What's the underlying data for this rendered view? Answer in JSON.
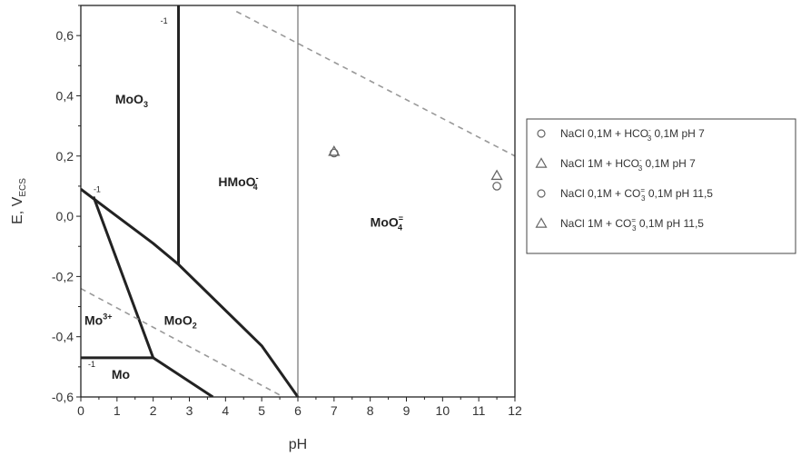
{
  "chart_data": {
    "type": "scatter",
    "title": "",
    "xlabel": "pH",
    "ylabel_main": "E, V",
    "ylabel_sub": "ECS",
    "xlim": [
      0,
      12
    ],
    "ylim": [
      -0.6,
      0.7
    ],
    "x_ticks": [
      0,
      1,
      2,
      3,
      4,
      5,
      6,
      7,
      8,
      9,
      10,
      11,
      12
    ],
    "y_ticks": [
      {
        "value": 0.6,
        "label": "0,6"
      },
      {
        "value": 0.4,
        "label": "0,4"
      },
      {
        "value": 0.2,
        "label": "0,2"
      },
      {
        "value": 0.0,
        "label": "0,0"
      },
      {
        "value": -0.2,
        "label": "-0,2"
      },
      {
        "value": -0.4,
        "label": "-0,4"
      },
      {
        "value": -0.6,
        "label": "-0,6"
      }
    ],
    "grid": false,
    "boundaries": [
      {
        "style": "thick",
        "points": [
          [
            2.7,
            0.7
          ],
          [
            2.7,
            -0.16
          ]
        ]
      },
      {
        "style": "thick",
        "points": [
          [
            0,
            0.09
          ],
          [
            2.0,
            -0.09
          ],
          [
            2.7,
            -0.16
          ],
          [
            5.0,
            -0.43
          ],
          [
            6.0,
            -0.6
          ]
        ]
      },
      {
        "style": "thick",
        "points": [
          [
            0.35,
            0.065
          ],
          [
            2.0,
            -0.47
          ]
        ]
      },
      {
        "style": "thick",
        "points": [
          [
            0,
            -0.47
          ],
          [
            2.0,
            -0.47
          ],
          [
            3.65,
            -0.6
          ]
        ]
      },
      {
        "style": "thin",
        "points": [
          [
            6.0,
            0.7
          ],
          [
            6.0,
            -0.6
          ]
        ]
      },
      {
        "style": "dashed",
        "points": [
          [
            4.3,
            0.68
          ],
          [
            12.0,
            0.2
          ]
        ]
      },
      {
        "style": "dashed",
        "points": [
          [
            0,
            -0.24
          ],
          [
            5.6,
            -0.6
          ]
        ]
      }
    ],
    "regions": [
      {
        "main": "MoO",
        "sub": "3",
        "sup": "",
        "x": 0.95,
        "y": 0.375
      },
      {
        "main": "HMoO",
        "sub": "4",
        "sup": "-",
        "x": 3.8,
        "y": 0.1
      },
      {
        "main": "MoO",
        "sub": "4",
        "sup": "=",
        "x": 8.0,
        "y": -0.035
      },
      {
        "main": "Mo",
        "sub": "",
        "sup": "3+",
        "x": 0.1,
        "y": -0.36
      },
      {
        "main": "MoO",
        "sub": "2",
        "sup": "",
        "x": 2.3,
        "y": -0.36
      },
      {
        "main": "Mo",
        "sub": "",
        "sup": "",
        "x": 0.85,
        "y": -0.54
      }
    ],
    "annotations": [
      {
        "text": "-1",
        "x": 2.2,
        "y": 0.64
      },
      {
        "text": "-1",
        "x": 0.35,
        "y": 0.08
      },
      {
        "text": "-1",
        "x": 0.2,
        "y": -0.5
      }
    ],
    "series": [
      {
        "marker": "circle",
        "legend_main": "NaCl 0,1M + HCO",
        "legend_sub": "3",
        "legend_sup": "-",
        "legend_tail": " 0,1M pH 7",
        "points": [
          [
            7.0,
            0.21
          ]
        ]
      },
      {
        "marker": "triangle",
        "legend_main": "NaCl 1M + HCO",
        "legend_sub": "3",
        "legend_sup": "-",
        "legend_tail": " 0,1M pH 7",
        "points": [
          [
            7.0,
            0.215
          ]
        ]
      },
      {
        "marker": "circle",
        "legend_main": "NaCl 0,1M + CO",
        "legend_sub": "3",
        "legend_sup": "=",
        "legend_tail": " 0,1M pH 11,5",
        "points": [
          [
            11.5,
            0.1
          ]
        ]
      },
      {
        "marker": "triangle",
        "legend_main": "NaCl 1M + CO",
        "legend_sub": "3",
        "legend_sup": "=",
        "legend_tail": " 0,1M pH 11,5",
        "points": [
          [
            11.5,
            0.135
          ]
        ]
      }
    ],
    "legend_position": "right",
    "colors": {
      "axis": "#222222",
      "boundary": "#222222",
      "dashed": "#999999",
      "marker": "#666666"
    }
  }
}
